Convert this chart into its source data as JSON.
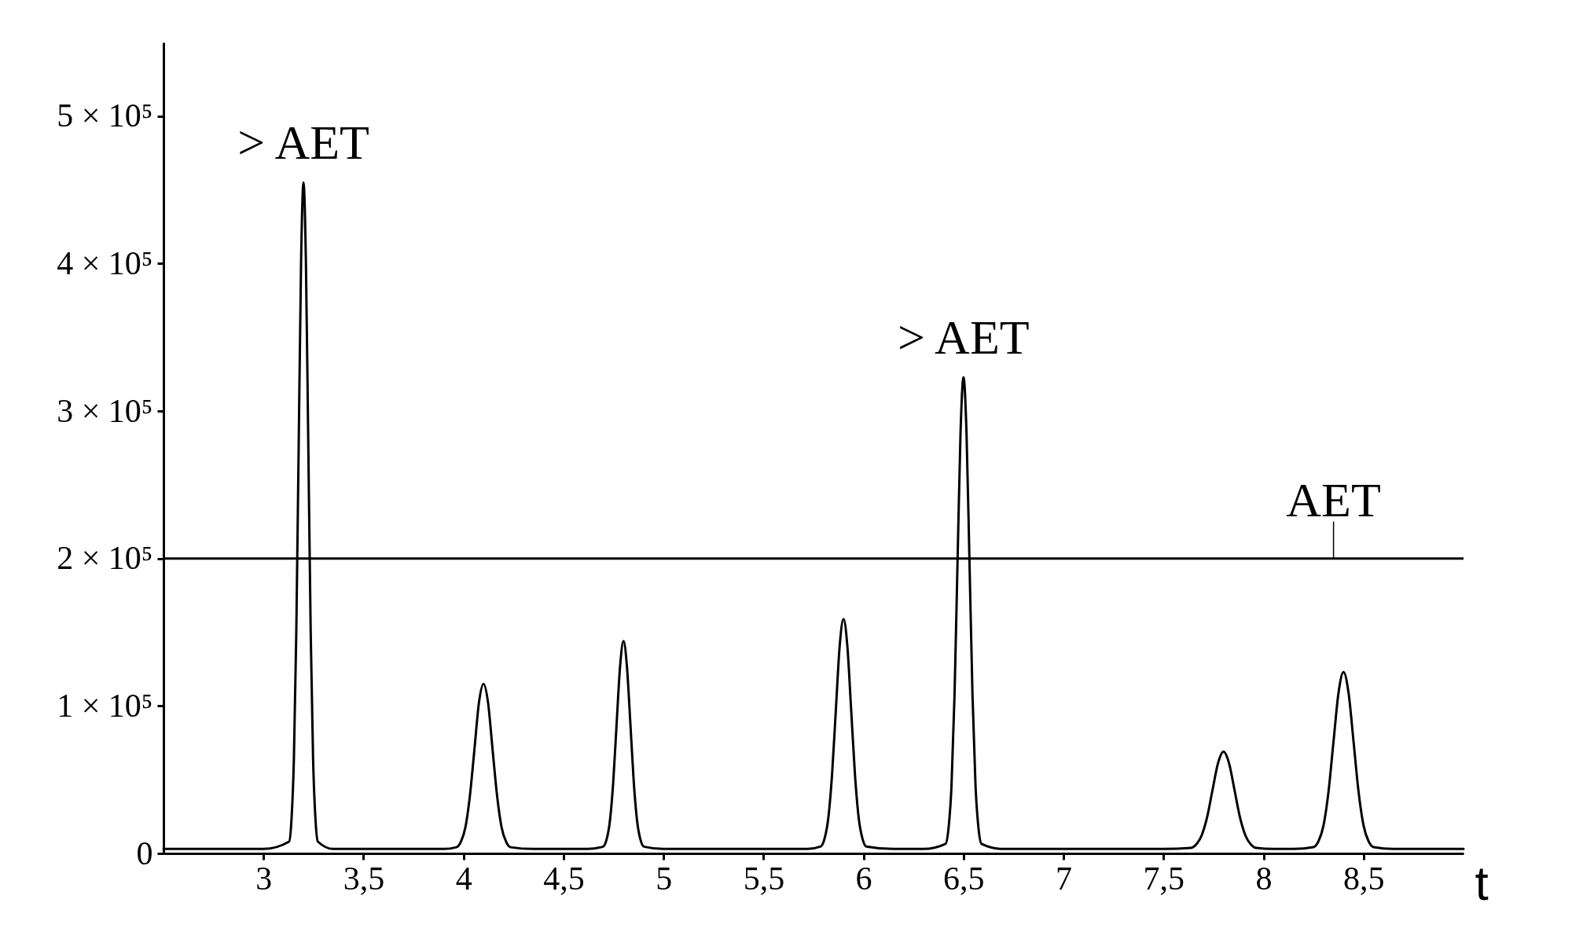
{
  "chart_data": {
    "type": "line",
    "xlabel": "t",
    "xlim": [
      2.5,
      9
    ],
    "xticks": [
      3,
      {
        "value": 3.5,
        "label": "3,5"
      },
      4,
      {
        "value": 4.5,
        "label": "4,5"
      },
      5,
      {
        "value": 5.5,
        "label": "5,5"
      },
      6,
      {
        "value": 6.5,
        "label": "6,5"
      },
      7,
      {
        "value": 7.5,
        "label": "7,5"
      },
      8,
      {
        "value": 8.5,
        "label": "8,5"
      }
    ],
    "ylim": [
      0,
      550000
    ],
    "yticks": [
      0,
      {
        "value": 100000,
        "label": "1 × 10⁵"
      },
      {
        "value": 200000,
        "label": "2 × 10⁵"
      },
      {
        "value": 300000,
        "label": "3 × 10⁵"
      },
      {
        "value": 400000,
        "label": "4 × 10⁵"
      },
      {
        "value": 500000,
        "label": "5 × 10⁵"
      }
    ],
    "series": [
      {
        "color": "#000000",
        "x": [
          2.5,
          2.75,
          3.0,
          3.128,
          3.14,
          3.152,
          3.164,
          3.176,
          3.188,
          3.2,
          3.212,
          3.224,
          3.236,
          3.248,
          3.26,
          3.272,
          3.35,
          3.55,
          3.75,
          3.9,
          3.965,
          3.987,
          4.01,
          4.032,
          4.055,
          4.077,
          4.1,
          4.123,
          4.145,
          4.168,
          4.19,
          4.213,
          4.235,
          4.35,
          4.5,
          4.62,
          4.698,
          4.715,
          4.732,
          4.749,
          4.766,
          4.783,
          4.8,
          4.817,
          4.834,
          4.851,
          4.868,
          4.885,
          4.902,
          5.0,
          5.2,
          5.4,
          5.6,
          5.72,
          5.786,
          5.805,
          5.824,
          5.843,
          5.862,
          5.881,
          5.9,
          5.919,
          5.938,
          5.957,
          5.976,
          5.995,
          6.014,
          6.15,
          6.3,
          6.41,
          6.425,
          6.44,
          6.455,
          6.47,
          6.485,
          6.5,
          6.515,
          6.53,
          6.545,
          6.56,
          6.575,
          6.59,
          6.7,
          6.9,
          7.1,
          7.3,
          7.5,
          7.635,
          7.662,
          7.69,
          7.717,
          7.745,
          7.772,
          7.8,
          7.828,
          7.855,
          7.883,
          7.91,
          7.938,
          7.965,
          8.05,
          8.15,
          8.25,
          8.275,
          8.3,
          8.325,
          8.35,
          8.375,
          8.4,
          8.425,
          8.45,
          8.475,
          8.5,
          8.525,
          8.55,
          8.65,
          8.8,
          9.0
        ],
        "values": [
          3000,
          3000,
          3000,
          8000,
          23000,
          64000,
          150000,
          277000,
          402000,
          455000,
          402000,
          277000,
          150000,
          64000,
          23000,
          8000,
          3000,
          3000,
          3000,
          3000,
          4200,
          7900,
          18000,
          39000,
          71000,
          102000,
          115000,
          102000,
          71000,
          39000,
          18000,
          7900,
          4200,
          3000,
          3000,
          3000,
          4600,
          9200,
          22000,
          49000,
          89000,
          127000,
          144000,
          127000,
          89000,
          49000,
          22000,
          9200,
          4600,
          3000,
          3000,
          3000,
          3000,
          3000,
          4700,
          9900,
          24000,
          54000,
          98000,
          141000,
          159000,
          141000,
          98000,
          54000,
          24000,
          9900,
          4700,
          3000,
          3000,
          6500,
          17000,
          46000,
          107000,
          197000,
          285000,
          323000,
          285000,
          197000,
          107000,
          46000,
          17000,
          6500,
          3000,
          3000,
          3000,
          3000,
          3000,
          3700,
          5900,
          12000,
          24000,
          43000,
          61000,
          69000,
          61000,
          43000,
          24000,
          12000,
          5900,
          3700,
          3000,
          3000,
          4300,
          8300,
          19000,
          42000,
          76000,
          109000,
          123000,
          109000,
          76000,
          42000,
          19000,
          8300,
          4300,
          3000,
          3000,
          3000
        ]
      }
    ],
    "ref_lines": [
      {
        "axis": "y",
        "value": 200000,
        "label": "AET",
        "color": "#000000"
      }
    ],
    "annotations": [
      {
        "text": "> AET",
        "x": 3.2,
        "y": 455000
      },
      {
        "text": "> AET",
        "x": 6.5,
        "y": 323000
      }
    ]
  }
}
